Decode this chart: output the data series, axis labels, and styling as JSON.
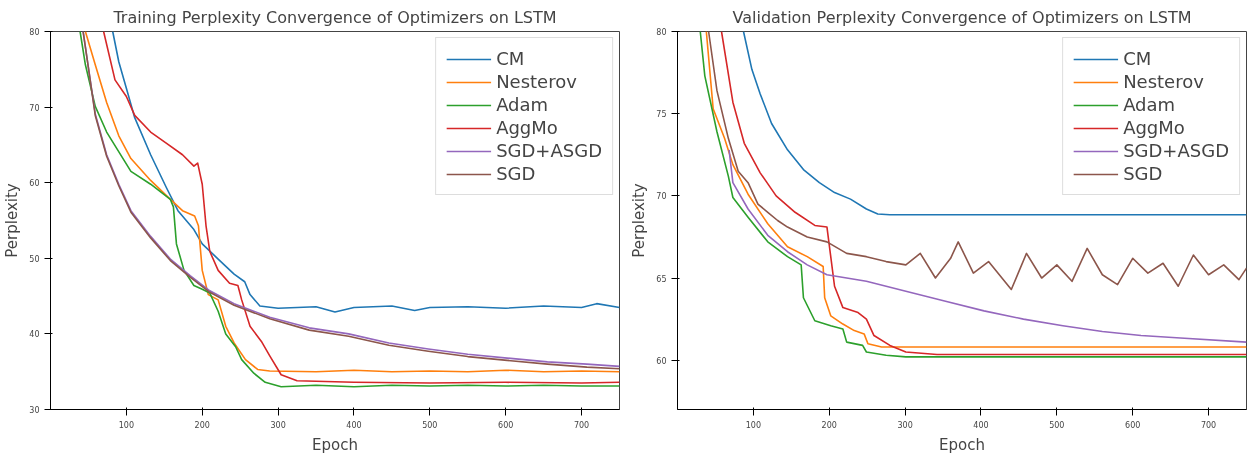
{
  "chart_data": [
    {
      "type": "line",
      "title": "Training Perplexity Convergence of Optimizers on LSTM",
      "xlabel": "Epoch",
      "ylabel": "Perplexity",
      "xlim": [
        0,
        750
      ],
      "ylim": [
        30,
        80
      ],
      "xticks": [
        100,
        200,
        300,
        400,
        500,
        600,
        700
      ],
      "yticks": [
        30,
        40,
        50,
        60,
        70,
        80
      ],
      "legend": "top right",
      "grid": false,
      "series": [
        {
          "name": "CM",
          "color": "#1f77b4",
          "x": [
            82,
            90,
            100,
            111,
            132,
            153,
            168,
            189,
            200,
            221,
            242,
            256,
            263,
            276,
            300,
            350,
            375,
            400,
            450,
            480,
            500,
            550,
            600,
            650,
            700,
            720,
            750
          ],
          "values": [
            80,
            76,
            72.5,
            68.6,
            63.7,
            59.3,
            56.3,
            53.8,
            51.9,
            49.9,
            47.9,
            46.9,
            45.2,
            43.7,
            43.4,
            43.6,
            42.9,
            43.5,
            43.7,
            43.1,
            43.5,
            43.6,
            43.4,
            43.7,
            43.5,
            44,
            43.5
          ]
        },
        {
          "name": "Nesterov",
          "color": "#ff7f0e",
          "x": [
            46,
            59,
            74,
            90,
            106,
            132,
            158,
            174,
            190,
            195,
            200,
            208,
            221,
            231,
            242,
            257,
            273,
            289,
            350,
            400,
            450,
            500,
            550,
            600,
            650,
            700,
            750
          ],
          "values": [
            80,
            75.6,
            70.6,
            66.2,
            63.2,
            60.3,
            57.8,
            56.3,
            55.6,
            54.3,
            48.4,
            45.2,
            44.5,
            41,
            38.8,
            36.6,
            35.3,
            35.1,
            35,
            35.2,
            35,
            35.1,
            35,
            35.2,
            35,
            35.1,
            35
          ]
        },
        {
          "name": "Adam",
          "color": "#2ca02c",
          "x": [
            39,
            46,
            59,
            74,
            106,
            132,
            158,
            162,
            166,
            176,
            189,
            200,
            210,
            221,
            231,
            244,
            252,
            268,
            283,
            304,
            350,
            400,
            450,
            500,
            550,
            600,
            650,
            700,
            750
          ],
          "values": [
            80,
            75.6,
            70.1,
            66.7,
            61.5,
            59.8,
            57.8,
            56.8,
            51.9,
            48.4,
            46.4,
            45.9,
            45.4,
            43,
            40,
            38.3,
            36.6,
            34.8,
            33.6,
            33,
            33.2,
            33,
            33.2,
            33.1,
            33.2,
            33.1,
            33.2,
            33.1,
            33.1
          ]
        },
        {
          "name": "AggMo",
          "color": "#d62728",
          "x": [
            70,
            85,
            100,
            111,
            132,
            153,
            174,
            189,
            194,
            200,
            205,
            210,
            221,
            236,
            247,
            252,
            263,
            278,
            289,
            304,
            325,
            400,
            500,
            600,
            700,
            750
          ],
          "values": [
            80,
            73.6,
            71.4,
            68.9,
            66.7,
            65.2,
            63.7,
            62.2,
            62.6,
            59.8,
            54.3,
            50.9,
            48.4,
            46.7,
            46.4,
            44.5,
            41,
            39,
            37.1,
            34.6,
            33.8,
            33.6,
            33.5,
            33.6,
            33.5,
            33.6
          ]
        },
        {
          "name": "SGD+ASGD",
          "color": "#9467bd",
          "x": [
            43,
            59,
            74,
            90,
            106,
            132,
            158,
            184,
            210,
            242,
            289,
            341,
            393,
            446,
            498,
            550,
            602,
            655,
            707,
            750
          ],
          "values": [
            80,
            69.1,
            63.7,
            59.8,
            56.3,
            52.9,
            49.9,
            47.7,
            45.7,
            44,
            42.2,
            40.8,
            40,
            38.8,
            38,
            37.3,
            36.8,
            36.3,
            36,
            35.7
          ]
        },
        {
          "name": "SGD",
          "color": "#8c564b",
          "x": [
            43,
            59,
            74,
            90,
            106,
            132,
            158,
            184,
            210,
            242,
            289,
            341,
            393,
            446,
            498,
            550,
            602,
            655,
            707,
            750
          ],
          "values": [
            80,
            68.9,
            63.5,
            59.6,
            56.1,
            52.7,
            49.7,
            47.5,
            45.5,
            43.8,
            42,
            40.5,
            39.7,
            38.5,
            37.7,
            37,
            36.5,
            36,
            35.6,
            35.4
          ]
        }
      ]
    },
    {
      "type": "line",
      "title": "Validation Perplexity Convergence of Optimizers on LSTM",
      "xlabel": "Epoch",
      "ylabel": "Perplexity",
      "xlim": [
        0,
        750
      ],
      "ylim": [
        57,
        80
      ],
      "xticks": [
        100,
        200,
        300,
        400,
        500,
        600,
        700
      ],
      "yticks": [
        60,
        65,
        70,
        75,
        80
      ],
      "legend": "top right",
      "grid": false,
      "series": [
        {
          "name": "CM",
          "color": "#1f77b4",
          "x": [
            87,
            98,
            109,
            124,
            145,
            166,
            187,
            207,
            228,
            249,
            264,
            280,
            750
          ],
          "values": [
            80,
            77.7,
            76.2,
            74.4,
            72.8,
            71.6,
            70.8,
            70.2,
            69.8,
            69.2,
            68.9,
            68.85,
            68.85
          ]
        },
        {
          "name": "Nesterov",
          "color": "#ff7f0e",
          "x": [
            38,
            47,
            62,
            73,
            93,
            119,
            145,
            171,
            192,
            194,
            202,
            218,
            233,
            246,
            251,
            269,
            750
          ],
          "values": [
            80,
            75.3,
            73.5,
            71.9,
            70.1,
            68.3,
            66.9,
            66.3,
            65.7,
            63.8,
            62.7,
            62.2,
            61.8,
            61.6,
            61,
            60.8,
            60.8
          ]
        },
        {
          "name": "Adam",
          "color": "#2ca02c",
          "x": [
            30,
            36,
            52,
            67,
            73,
            93,
            119,
            145,
            163,
            166,
            181,
            202,
            218,
            223,
            244,
            249,
            275,
            301,
            750
          ],
          "values": [
            80,
            77.3,
            73.9,
            71.2,
            69.9,
            68.7,
            67.2,
            66.3,
            65.8,
            63.8,
            62.4,
            62.1,
            61.9,
            61.1,
            60.9,
            60.5,
            60.3,
            60.2,
            60.2
          ]
        },
        {
          "name": "AggMo",
          "color": "#d62728",
          "x": [
            58,
            73,
            88,
            109,
            130,
            155,
            181,
            197,
            202,
            207,
            218,
            238,
            249,
            259,
            280,
            301,
            342,
            750
          ],
          "values": [
            80,
            75.7,
            73.2,
            71.4,
            70,
            69,
            68.2,
            68.1,
            66.3,
            64.5,
            63.2,
            62.9,
            62.5,
            61.5,
            60.9,
            60.5,
            60.35,
            60.35
          ]
        },
        {
          "name": "SGD+ASGD",
          "color": "#9467bd",
          "x": [
            68,
            73,
            93,
            119,
            145,
            171,
            197,
            249,
            301,
            352,
            404,
            456,
            508,
            560,
            611,
            663,
            750
          ],
          "values": [
            72.8,
            70.8,
            69.2,
            67.6,
            66.6,
            65.8,
            65.2,
            64.8,
            64.2,
            63.6,
            63,
            62.5,
            62.1,
            61.75,
            61.5,
            61.35,
            61.1
          ]
        },
        {
          "name": "SGD",
          "color": "#8c564b",
          "x": [
            41,
            52,
            67,
            80,
            93,
            106,
            119,
            132,
            145,
            171,
            197,
            223,
            249,
            275,
            301,
            320,
            340,
            360,
            370,
            390,
            410,
            440,
            460,
            480,
            500,
            520,
            540,
            560,
            580,
            600,
            620,
            640,
            660,
            680,
            700,
            720,
            740,
            750
          ],
          "values": [
            80,
            76.4,
            73.5,
            71.5,
            70.8,
            69.5,
            69,
            68.5,
            68.1,
            67.5,
            67.2,
            66.5,
            66.3,
            66,
            65.8,
            66.5,
            65,
            66.2,
            67.2,
            65.3,
            66,
            64.3,
            66.5,
            65,
            65.8,
            64.8,
            66.8,
            65.2,
            64.6,
            66.2,
            65.3,
            65.9,
            64.5,
            66.4,
            65.2,
            65.8,
            64.9,
            65.6
          ]
        }
      ]
    }
  ]
}
